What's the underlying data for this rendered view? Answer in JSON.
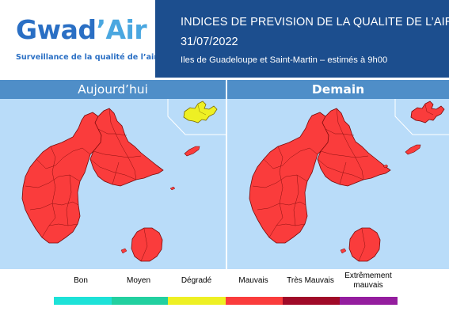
{
  "logo": {
    "word_main": "Gwad",
    "word_accent": "’Air",
    "tagline": "Surveillance de la qualité de l’air"
  },
  "header": {
    "title": "INDICES DE PREVISION DE LA QUALITE DE L’AIR",
    "date": "31/07/2022",
    "subtitle": "Iles de Guadeloupe et Saint-Martin – estimés à 9h00"
  },
  "panels": {
    "today": {
      "label": "Aujourd’hui",
      "guadeloupe_index": "Mauvais",
      "saint_martin_index": "Dégradé"
    },
    "tomorrow": {
      "label": "Demain",
      "guadeloupe_index": "Mauvais",
      "saint_martin_index": "Mauvais"
    }
  },
  "legend": {
    "items": [
      {
        "label": "Bon",
        "color": "#1de2d8"
      },
      {
        "label": "Moyen",
        "color": "#22d0a0"
      },
      {
        "label": "Dégradé",
        "color": "#eef024"
      },
      {
        "label": "Mauvais",
        "color": "#fa3c3c"
      },
      {
        "label": "Très Mauvais",
        "color": "#a00a28"
      },
      {
        "label": "Extrêmement mauvais",
        "color": "#941d9e"
      }
    ]
  },
  "colors": {
    "header_band": "#1c4e8e",
    "panel_head": "#4f8ec8",
    "sea": "#b9dcf9",
    "mauvais": "#fa3c3c",
    "degrade": "#eef024",
    "land_outline": "#7a0a0a"
  }
}
